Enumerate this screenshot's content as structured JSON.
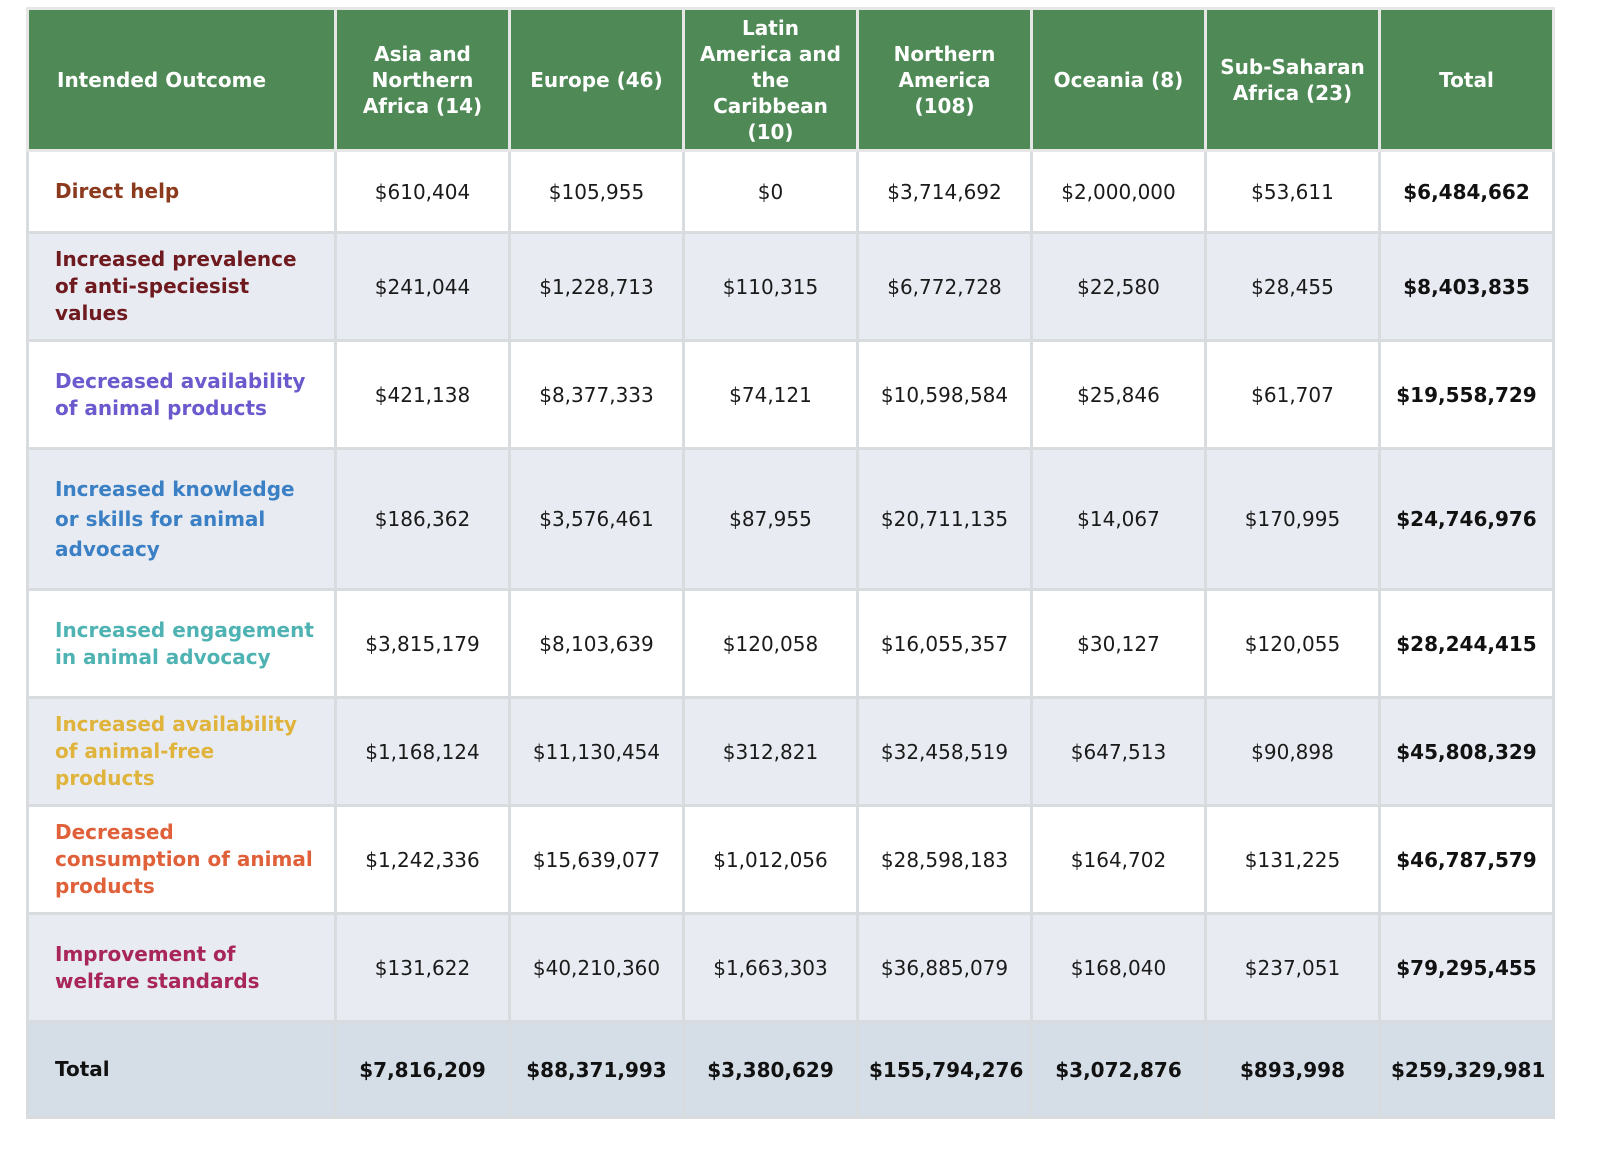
{
  "headers": {
    "outcome": "Intended Outcome",
    "asia": "Asia and Northern Africa (14)",
    "europe": "Europe (46)",
    "latam": "Latin America and the Caribbean (10)",
    "namerica": "Northern America (108)",
    "oceania": "Oceania (8)",
    "ssa": "Sub-Saharan Africa (23)",
    "total": "Total"
  },
  "colors": {
    "header_bg": "#4f8a56",
    "row_alt_bg": "#e8ecf2",
    "total_row_bg": "#d5dee7"
  },
  "rows": [
    {
      "label": "Direct help",
      "color": "#8b3a1e",
      "values": [
        "$610,404",
        "$105,955",
        "$0",
        "$3,714,692",
        "$2,000,000",
        "$53,611"
      ],
      "total": "$6,484,662"
    },
    {
      "label": "Increased prevalence of anti-speciesist values",
      "color": "#6e1a1f",
      "values": [
        "$241,044",
        "$1,228,713",
        "$110,315",
        "$6,772,728",
        "$22,580",
        "$28,455"
      ],
      "total": "$8,403,835"
    },
    {
      "label": "Decreased availability of animal products",
      "color": "#6a5acd",
      "values": [
        "$421,138",
        "$8,377,333",
        "$74,121",
        "$10,598,584",
        "$25,846",
        "$61,707"
      ],
      "total": "$19,558,729"
    },
    {
      "label": "Increased knowledge or skills for animal advocacy",
      "color": "#3b7fc4",
      "values": [
        "$186,362",
        "$3,576,461",
        "$87,955",
        "$20,711,135",
        "$14,067",
        "$170,995"
      ],
      "total": "$24,746,976"
    },
    {
      "label": "Increased engagement in animal advocacy",
      "color": "#4fb3b3",
      "values": [
        "$3,815,179",
        "$8,103,639",
        "$120,058",
        "$16,055,357",
        "$30,127",
        "$120,055"
      ],
      "total": "$28,244,415"
    },
    {
      "label": "Increased availability of animal-free products",
      "color": "#e0b43c",
      "values": [
        "$1,168,124",
        "$11,130,454",
        "$312,821",
        "$32,458,519",
        "$647,513",
        "$90,898"
      ],
      "total": "$45,808,329"
    },
    {
      "label": "Decreased consumption of animal products",
      "color": "#e0603a",
      "values": [
        "$1,242,336",
        "$15,639,077",
        "$1,012,056",
        "$28,598,183",
        "$164,702",
        "$131,225"
      ],
      "total": "$46,787,579"
    },
    {
      "label": "Improvement of welfare standards",
      "color": "#a8265a",
      "values": [
        "$131,622",
        "$40,210,360",
        "$1,663,303",
        "$36,885,079",
        "$168,040",
        "$237,051"
      ],
      "total": "$79,295,455"
    }
  ],
  "totals": {
    "label": "Total",
    "values": [
      "$7,816,209",
      "$88,371,993",
      "$3,380,629",
      "$155,794,276",
      "$3,072,876",
      "$893,998"
    ],
    "total": "$259,329,981"
  }
}
